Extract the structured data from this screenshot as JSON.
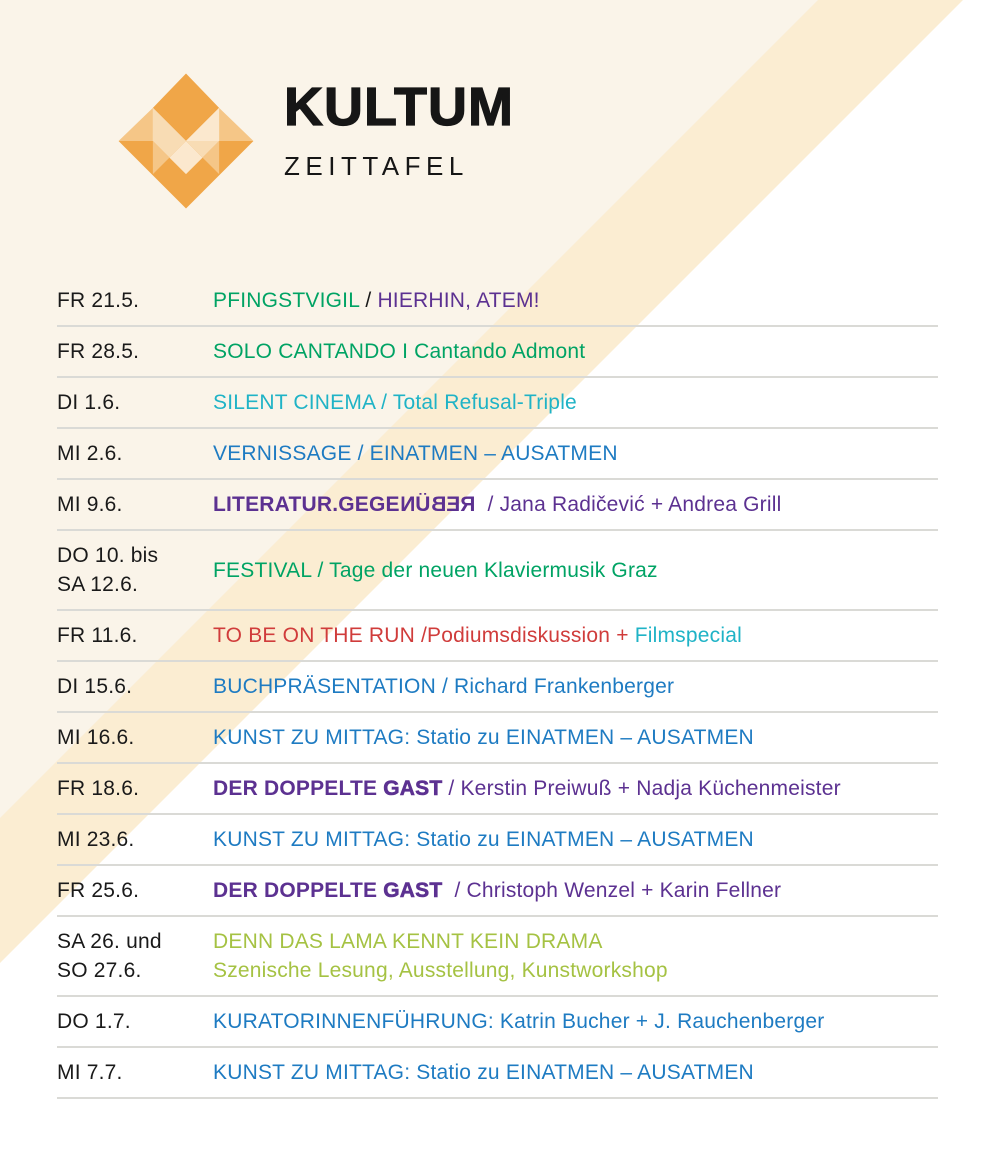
{
  "theme": {
    "background_white": "#FFFFFF",
    "background_cream": "#FAF4E9",
    "background_yellow": "#FBEDD2",
    "separator": "#DADAD6",
    "date_text": "#1A1A1A",
    "brand_text": "#161616",
    "text_colors": {
      "green": "#00A364",
      "purple": "#5C3191",
      "teal": "#1FB3C6",
      "blue": "#1E7BC2",
      "red": "#D03C3B",
      "lime": "#A5C243",
      "dark": "#1A1A1A"
    },
    "logo_colors": {
      "orange": "#F0A648",
      "mid": "#F5C687",
      "light": "#F8DCB4",
      "pale": "#FBE8CE"
    }
  },
  "header": {
    "brand": "KULTUM",
    "subtitle": "ZEITTAFEL",
    "logo_icon": "kultum-faceted-diamond"
  },
  "schedule": {
    "rows": [
      {
        "date_lines": [
          "FR 21.5."
        ],
        "segments": [
          {
            "text": "PFINGSTVIGIL",
            "color": "green"
          },
          {
            "text": " / ",
            "color": "dark"
          },
          {
            "text": "HIERHIN, ATEM!",
            "color": "purple"
          }
        ]
      },
      {
        "date_lines": [
          "FR 28.5."
        ],
        "segments": [
          {
            "text": "SOLO CANTANDO I Cantando Admont",
            "color": "green"
          }
        ]
      },
      {
        "date_lines": [
          "DI 1.6."
        ],
        "segments": [
          {
            "text": "SILENT CINEMA / Total Refusal-Triple",
            "color": "teal"
          }
        ]
      },
      {
        "date_lines": [
          "MI 2.6."
        ],
        "segments": [
          {
            "text": "VERNISSAGE / EINATMEN – AUSATMEN",
            "color": "blue"
          }
        ]
      },
      {
        "date_lines": [
          "MI 9.6."
        ],
        "segments": [
          {
            "text": "LITERATUR.GEGE",
            "color": "purple",
            "weight": "bold"
          },
          {
            "text": "NÜBER",
            "color": "purple",
            "weight": "bold",
            "mirror": true
          },
          {
            "text": "  / Jana Radičević + Andrea Grill",
            "color": "purple"
          }
        ]
      },
      {
        "date_lines": [
          "DO 10. bis",
          "SA 12.6."
        ],
        "segments": [
          {
            "text": "FESTIVAL / Tage der neuen Klaviermusik Graz",
            "color": "green"
          }
        ]
      },
      {
        "date_lines": [
          "FR 11.6."
        ],
        "segments": [
          {
            "text": "TO BE ON THE RUN /Podiumsdiskussion + ",
            "color": "red"
          },
          {
            "text": "Filmspecial",
            "color": "teal"
          }
        ]
      },
      {
        "date_lines": [
          "DI 15.6."
        ],
        "segments": [
          {
            "text": "BUCHPRÄSENTATION / Richard Frankenberger",
            "color": "blue"
          }
        ]
      },
      {
        "date_lines": [
          "MI 16.6."
        ],
        "segments": [
          {
            "text": "KUNST ZU MITTAG: Statio zu EINATMEN – AUSATMEN",
            "color": "blue"
          }
        ]
      },
      {
        "date_lines": [
          "FR 18.6."
        ],
        "segments": [
          {
            "text": "DER DOPPELTE ",
            "color": "purple",
            "weight": "bold"
          },
          {
            "text": "GAST",
            "color": "purple",
            "weight": "heavy"
          },
          {
            "text": " / Kerstin Preiwuß + Nadja Küchenmeister",
            "color": "purple"
          }
        ]
      },
      {
        "date_lines": [
          "MI 23.6."
        ],
        "segments": [
          {
            "text": "KUNST ZU MITTAG: Statio zu EINATMEN – AUSATMEN",
            "color": "blue"
          }
        ]
      },
      {
        "date_lines": [
          "FR 25.6."
        ],
        "segments": [
          {
            "text": "DER DOPPELTE ",
            "color": "purple",
            "weight": "bold"
          },
          {
            "text": "GAST",
            "color": "purple",
            "weight": "heavy"
          },
          {
            "text": "  / Christoph Wenzel + Karin Fellner",
            "color": "purple"
          }
        ]
      },
      {
        "date_lines": [
          "SA 26. und",
          "SO 27.6."
        ],
        "segments": [
          {
            "text": "DENN DAS LAMA KENNT KEIN DRAMA",
            "color": "lime"
          },
          {
            "text": "Szenische Lesung, Ausstellung, Kunstworkshop",
            "color": "lime",
            "break_before": true
          }
        ]
      },
      {
        "date_lines": [
          "DO 1.7."
        ],
        "segments": [
          {
            "text": "KURATORINNENFÜHRUNG: Katrin Bucher + J. Rauchenberger",
            "color": "blue"
          }
        ]
      },
      {
        "date_lines": [
          "MI 7.7."
        ],
        "segments": [
          {
            "text": "KUNST ZU MITTAG: Statio zu EINATMEN – AUSATMEN",
            "color": "blue"
          }
        ]
      }
    ]
  }
}
